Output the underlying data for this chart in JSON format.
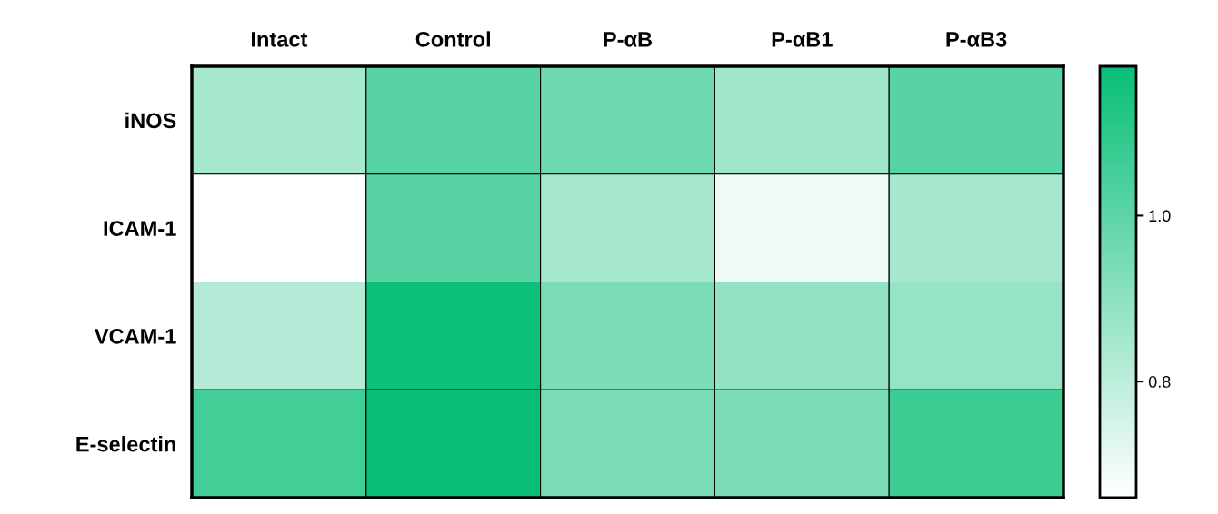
{
  "chart_data": {
    "type": "heatmap",
    "categories": [
      "Intact",
      "Control",
      "P-αB",
      "P-αB1",
      "P-αB3"
    ],
    "y_categories": [
      "iNOS",
      "ICAM-1",
      "VCAM-1",
      "E-selectin"
    ],
    "cells": [
      [
        0.85,
        1.01,
        0.97,
        0.86,
        1.01
      ],
      [
        0.66,
        1.01,
        0.85,
        0.7,
        0.85
      ],
      [
        0.82,
        1.17,
        0.94,
        0.89,
        0.88
      ],
      [
        1.06,
        1.18,
        0.94,
        0.94,
        1.07
      ]
    ],
    "clim": [
      0.66,
      1.18
    ],
    "cticks": [
      0.8,
      {
        "value": 1,
        "label": "1.0"
      }
    ]
  }
}
